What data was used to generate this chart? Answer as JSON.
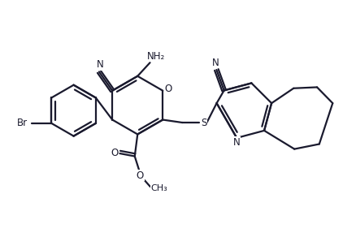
{
  "bg_color": "#ffffff",
  "line_color": "#1a1a2e",
  "line_width": 1.6,
  "figsize": [
    4.39,
    2.92
  ],
  "dpi": 100,
  "xlim": [
    0,
    10
  ],
  "ylim": [
    0,
    6.65
  ]
}
